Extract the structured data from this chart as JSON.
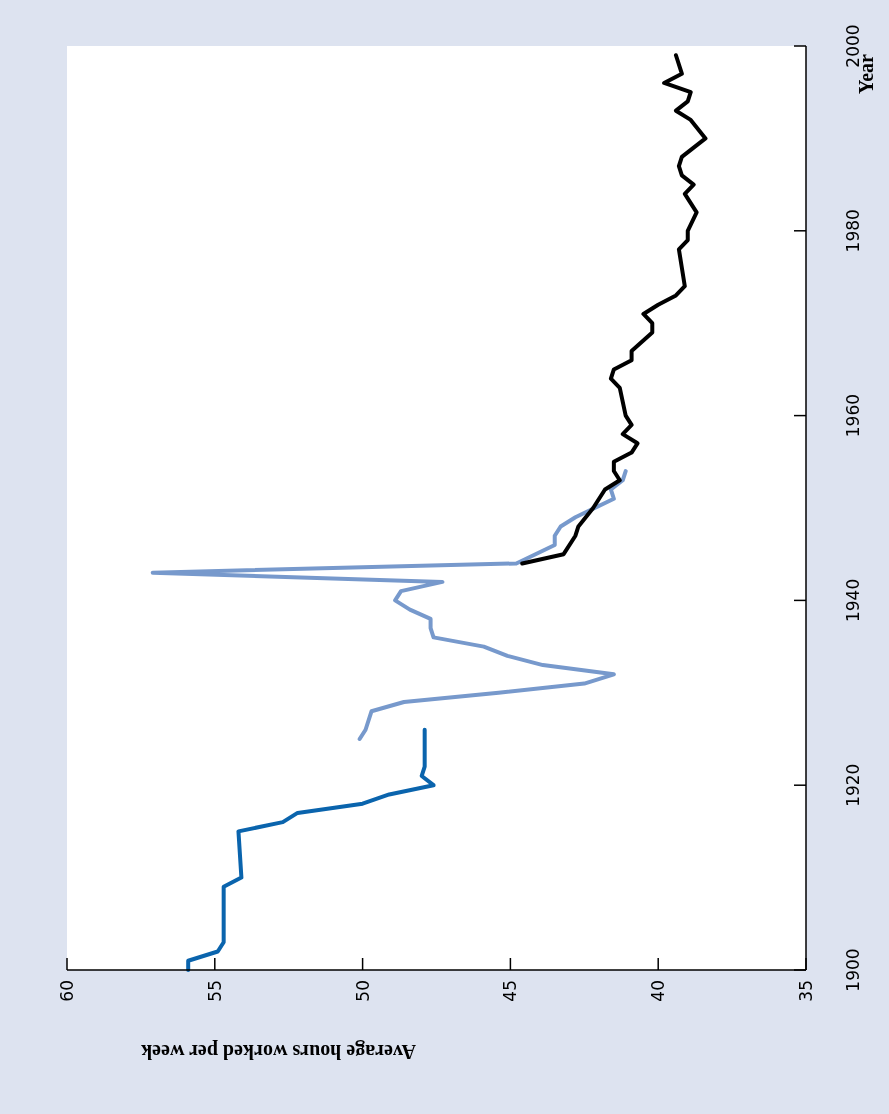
{
  "chart_data": {
    "type": "line",
    "xlabel": "Average hours worked per week",
    "ylabel": "Year",
    "xlim": [
      60,
      35
    ],
    "xticks": [
      60,
      55,
      50,
      45,
      40,
      35
    ],
    "ylim": [
      1900,
      2000
    ],
    "yticks": [
      1900,
      1920,
      1940,
      1960,
      1980,
      2000
    ],
    "grid": false,
    "series": [
      {
        "color": "#0a64ad",
        "values": [
          1900,
          1901,
          1902,
          1903,
          1909,
          1910,
          1915,
          1916,
          1917,
          1918,
          1919,
          1920,
          1921,
          1922,
          1926
        ],
        "x": [
          55.9,
          55.9,
          54.9,
          54.7,
          54.7,
          54.1,
          54.2,
          52.7,
          52.2,
          50.0,
          49.1,
          47.6,
          48.0,
          47.9,
          47.9
        ]
      },
      {
        "color": "#7799cc",
        "values": [
          1925,
          1926,
          1928,
          1929,
          1930,
          1931,
          1932,
          1933,
          1934,
          1935,
          1936,
          1937,
          1938,
          1939,
          1940,
          1941,
          1942,
          1943,
          1944,
          1946,
          1947,
          1948,
          1949,
          1951,
          1952,
          1953,
          1954
        ],
        "x": [
          50.1,
          49.9,
          49.7,
          48.6,
          45.4,
          42.5,
          41.5,
          43.9,
          45.1,
          45.9,
          47.6,
          47.7,
          47.7,
          48.4,
          48.9,
          48.7,
          47.3,
          57.1,
          44.8,
          43.5,
          43.5,
          43.3,
          42.8,
          41.5,
          41.6,
          41.2,
          41.1
        ]
      },
      {
        "color": "#000000",
        "values": [
          1944,
          1945,
          1947,
          1948,
          1950,
          1952,
          1953,
          1954,
          1955,
          1956,
          1957,
          1958,
          1959,
          1960,
          1963,
          1964,
          1965,
          1966,
          1967,
          1969,
          1970,
          1971,
          1972,
          1973,
          1974,
          1976,
          1978,
          1979,
          1980,
          1982,
          1984,
          1985,
          1986,
          1987,
          1988,
          1990,
          1992,
          1993,
          1994,
          1995,
          1996,
          1997,
          1999
        ],
        "x": [
          44.6,
          43.2,
          42.8,
          42.7,
          42.2,
          41.8,
          41.3,
          41.5,
          41.5,
          40.9,
          40.7,
          41.2,
          40.9,
          41.1,
          41.3,
          41.6,
          41.5,
          40.9,
          40.9,
          40.2,
          40.2,
          40.5,
          40.0,
          39.4,
          39.1,
          39.2,
          39.3,
          39.0,
          39.0,
          38.7,
          39.1,
          38.8,
          39.2,
          39.3,
          39.2,
          38.4,
          38.9,
          39.4,
          39.0,
          38.9,
          39.8,
          39.2,
          39.4
        ]
      }
    ]
  }
}
